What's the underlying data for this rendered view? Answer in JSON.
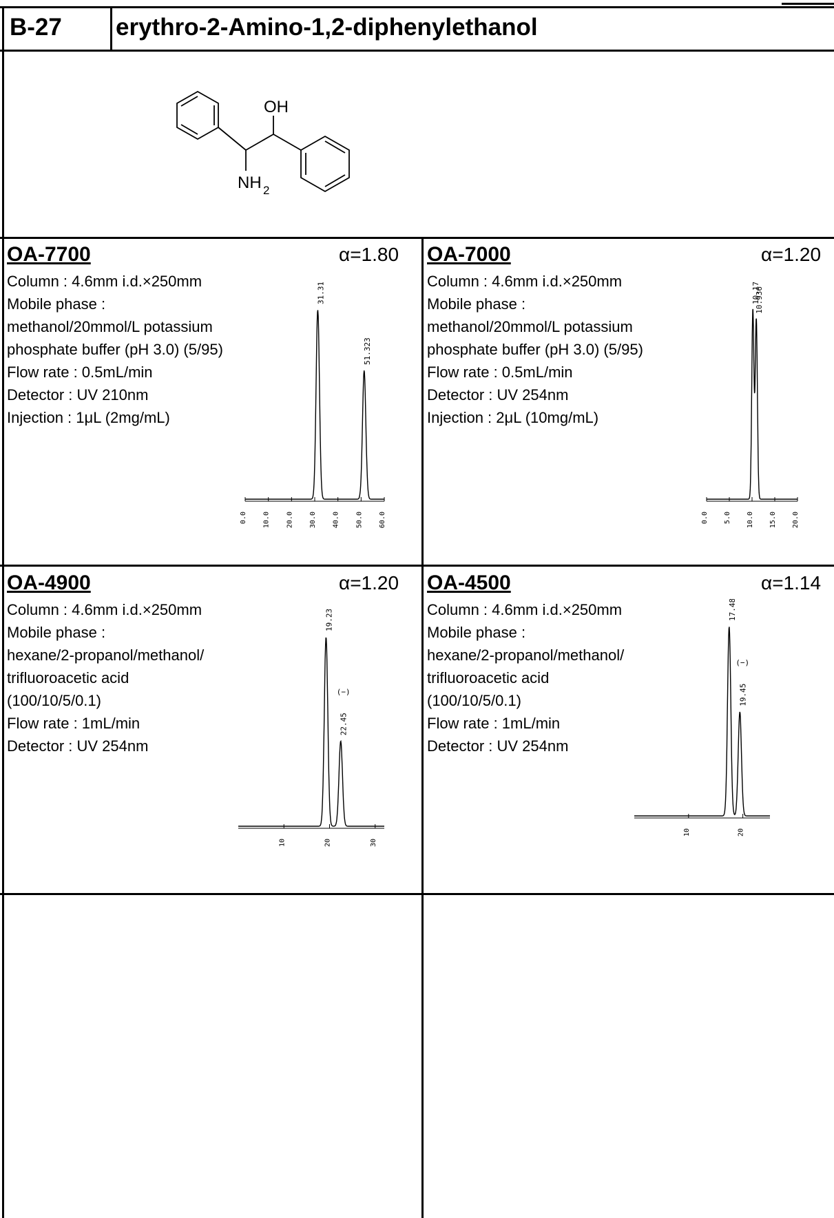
{
  "header": {
    "code": "B-27",
    "compound_name": "erythro-2-Amino-1,2-diphenylethanol"
  },
  "structure": {
    "oh_label": "OH",
    "nh_label": "NH",
    "nh_subscript": "2"
  },
  "panels": [
    {
      "column": "OA-7700",
      "alpha": "α=1.80",
      "lines": [
        "Column : 4.6mm i.d.×250mm",
        "Mobile phase :",
        " methanol/20mmol/L potassium",
        " phosphate buffer (pH 3.0) (5/95)",
        "Flow rate : 0.5mL/min",
        "Detector : UV 210nm",
        "Injection : 1μL (2mg/mL)"
      ],
      "chart_data": {
        "type": "line",
        "peaks": [
          {
            "label": "31.310",
            "x": 31.31,
            "height": 1.0
          },
          {
            "label": "51.323",
            "x": 51.323,
            "height": 0.68
          }
        ],
        "xticks": [
          "0.0",
          "10.0",
          "20.0",
          "30.0",
          "40.0",
          "50.0",
          "60.0"
        ],
        "xlim": [
          0,
          60
        ]
      }
    },
    {
      "column": "OA-7000",
      "alpha": "α=1.20",
      "lines": [
        "Column : 4.6mm i.d.×250mm",
        "Mobile phase :",
        " methanol/20mmol/L potassium",
        " phosphate buffer (pH 3.0) (5/95)",
        "Flow rate : 0.5mL/min",
        "Detector : UV 254nm",
        "Injection : 2μL (10mg/mL)"
      ],
      "chart_data": {
        "type": "line",
        "peaks": [
          {
            "label": "10.177",
            "x": 10.177,
            "height": 1.0
          },
          {
            "label": "10.936",
            "x": 10.936,
            "height": 0.95
          }
        ],
        "xticks": [
          "0.0",
          "5.0",
          "10.0",
          "15.0",
          "20.0"
        ],
        "xlim": [
          0,
          20
        ]
      }
    },
    {
      "column": "OA-4900",
      "alpha": "α=1.20",
      "lines": [
        "Column : 4.6mm i.d.×250mm",
        "Mobile phase :",
        " hexane/2-propanol/methanol/",
        " trifluoroacetic acid",
        " (100/10/5/0.1)",
        "Flow rate : 1mL/min",
        "Detector : UV 254nm"
      ],
      "chart_data": {
        "type": "line",
        "peaks": [
          {
            "label": "19.233",
            "sign": "(+)",
            "x": 19.233,
            "height": 1.0
          },
          {
            "label": "22.45",
            "sign": "(−)",
            "x": 22.45,
            "height": 0.45
          }
        ],
        "xticks": [
          "10",
          "20",
          "30"
        ],
        "xlim": [
          0,
          32
        ]
      }
    },
    {
      "column": "OA-4500",
      "alpha": "α=1.14",
      "lines": [
        "Column : 4.6mm i.d.×250mm",
        "Mobile phase :",
        " hexane/2-propanol/methanol/",
        " trifluoroacetic acid",
        " (100/10/5/0.1)",
        "Flow rate : 1mL/min",
        "Detector : UV 254nm"
      ],
      "chart_data": {
        "type": "line",
        "peaks": [
          {
            "label": "17.483",
            "sign": "(+)",
            "x": 17.483,
            "height": 1.0
          },
          {
            "label": "19.45",
            "sign": "(−)",
            "x": 19.45,
            "height": 0.55
          }
        ],
        "xticks": [
          "10",
          "20"
        ],
        "xlim": [
          0,
          25
        ]
      }
    }
  ]
}
